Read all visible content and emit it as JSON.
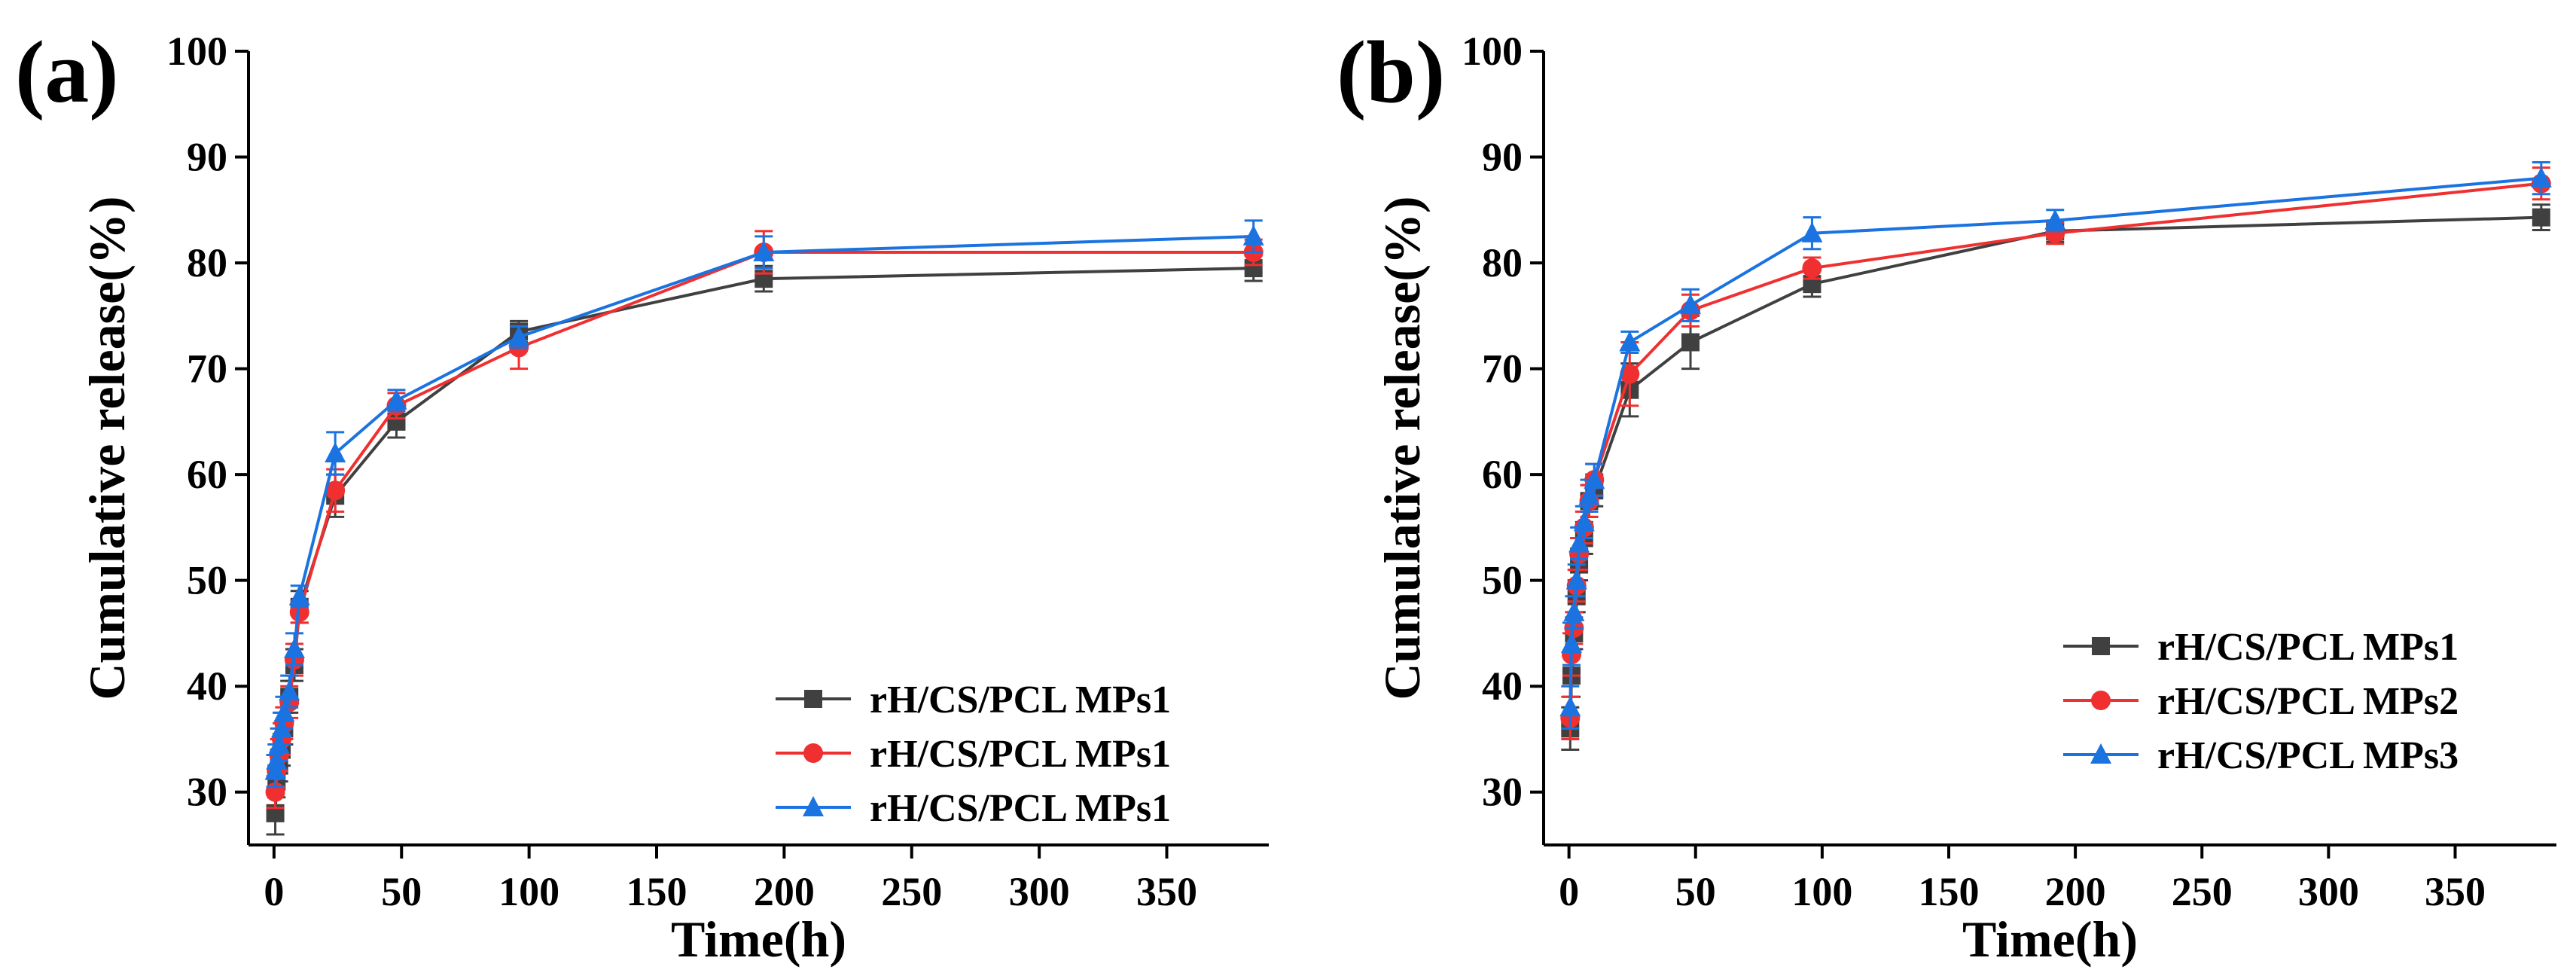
{
  "chart_data": [
    {
      "type": "line",
      "panel_label": "(a)",
      "xlabel": "Time(h)",
      "ylabel": "Cumulative release(%)",
      "xlim": [
        -10,
        390
      ],
      "ylim": [
        25,
        100
      ],
      "xticks": [
        0,
        50,
        100,
        150,
        200,
        250,
        300,
        350
      ],
      "yticks": [
        30,
        40,
        50,
        60,
        70,
        80,
        90,
        100
      ],
      "legend_position": "bottom-right",
      "x": [
        0.5,
        1,
        2,
        3,
        4,
        6,
        8,
        10,
        24,
        48,
        96,
        192,
        384
      ],
      "series": [
        {
          "name": "rH/CS/PCL MPs1",
          "color": "#404040",
          "marker": "square",
          "values": [
            28,
            31,
            32.5,
            34,
            36,
            39,
            42,
            47.5,
            58,
            65,
            73.5,
            78.5,
            79.5
          ],
          "errors": [
            2,
            1.5,
            1.5,
            1.5,
            1.5,
            1.5,
            1.5,
            1.5,
            2,
            1.5,
            1,
            1.2,
            1.2
          ]
        },
        {
          "name": "rH/CS/PCL MPs1",
          "color": "#f03030",
          "marker": "circle",
          "values": [
            30,
            32,
            33.5,
            35,
            36.5,
            38.5,
            42.5,
            47,
            58.5,
            66.5,
            72,
            81,
            81
          ],
          "errors": [
            1.5,
            1.5,
            1.5,
            1.5,
            1.5,
            1.5,
            1.5,
            1,
            2,
            1.2,
            2,
            2,
            1.2
          ]
        },
        {
          "name": "rH/CS/PCL MPs1",
          "color": "#1a73e0",
          "marker": "triangle",
          "values": [
            32,
            33,
            34.5,
            36,
            37.5,
            39.5,
            43.5,
            48.5,
            62,
            67,
            73,
            81,
            82.5
          ],
          "errors": [
            1.5,
            1.5,
            1.5,
            1.5,
            1.5,
            1.5,
            1.5,
            1,
            2,
            1,
            1,
            1.5,
            1.5
          ]
        }
      ]
    },
    {
      "type": "line",
      "panel_label": "(b)",
      "xlabel": "Time(h)",
      "ylabel": "Cumulative release(%)",
      "xlim": [
        -10,
        390
      ],
      "ylim": [
        25,
        100
      ],
      "xticks": [
        0,
        50,
        100,
        150,
        200,
        250,
        300,
        350
      ],
      "yticks": [
        30,
        40,
        50,
        60,
        70,
        80,
        90,
        100
      ],
      "legend_position": "bottom-right",
      "x": [
        0.5,
        1,
        2,
        3,
        4,
        6,
        8,
        10,
        24,
        48,
        96,
        192,
        384
      ],
      "series": [
        {
          "name": "rH/CS/PCL MPs1",
          "color": "#404040",
          "marker": "square",
          "values": [
            36,
            41,
            45,
            48.5,
            51.5,
            54,
            57.5,
            58.5,
            68,
            72.5,
            78,
            83,
            84.3
          ],
          "errors": [
            2,
            2,
            1.5,
            1.5,
            1.5,
            1.5,
            1.5,
            1.5,
            2.5,
            2.5,
            1.2,
            1,
            1.2
          ]
        },
        {
          "name": "rH/CS/PCL MPs2",
          "color": "#f03030",
          "marker": "circle",
          "values": [
            37,
            43,
            45.5,
            49.5,
            52.5,
            55,
            57.5,
            59.5,
            69.5,
            75.5,
            79.5,
            82.8,
            87.5
          ],
          "errors": [
            2,
            2,
            1.5,
            1.5,
            1.5,
            1.5,
            1.5,
            1.5,
            3,
            1.5,
            1,
            1,
            1.5
          ]
        },
        {
          "name": "rH/CS/PCL MPs3",
          "color": "#1a73e0",
          "marker": "triangle",
          "values": [
            38,
            44,
            47,
            50,
            53.5,
            55.5,
            58,
            59.5,
            72.5,
            76,
            82.8,
            84,
            88
          ],
          "errors": [
            2,
            2,
            1.5,
            1.5,
            1.5,
            1.5,
            1.5,
            1.5,
            1,
            1.5,
            1.5,
            1,
            1.5
          ]
        }
      ]
    }
  ]
}
